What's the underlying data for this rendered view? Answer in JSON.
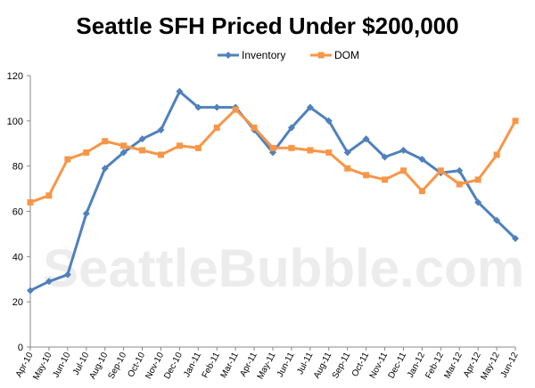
{
  "chart_data": {
    "type": "line",
    "title": "Seattle SFH Priced Under $200,000",
    "watermark": "SeattleBubble.com",
    "categories": [
      "Apr-10",
      "May-10",
      "Jun-10",
      "Jul-10",
      "Aug-10",
      "Sep-10",
      "Oct-10",
      "Nov-10",
      "Dec-10",
      "Jan-11",
      "Feb-11",
      "Mar-11",
      "Apr-11",
      "May-11",
      "Jun-11",
      "Jul-11",
      "Aug-11",
      "Sep-11",
      "Oct-11",
      "Nov-11",
      "Dec-11",
      "Jan-12",
      "Feb-12",
      "Mar-12",
      "Apr-12",
      "May-12",
      "Jun-12"
    ],
    "series": [
      {
        "name": "Inventory",
        "color": "#4f81bd",
        "marker": "diamond",
        "values": [
          25,
          29,
          32,
          59,
          79,
          86,
          92,
          96,
          113,
          106,
          106,
          106,
          96,
          86,
          97,
          106,
          100,
          86,
          92,
          84,
          87,
          83,
          77,
          78,
          64,
          56,
          48
        ]
      },
      {
        "name": "DOM",
        "color": "#f79646",
        "marker": "square",
        "values": [
          64,
          67,
          83,
          86,
          91,
          89,
          87,
          85,
          89,
          88,
          97,
          105,
          97,
          88,
          88,
          87,
          86,
          79,
          76,
          74,
          78,
          69,
          78,
          72,
          74,
          85,
          100
        ]
      }
    ],
    "ylim": [
      0,
      120
    ],
    "yticks": [
      0,
      20,
      40,
      60,
      80,
      100,
      120
    ],
    "xlabel": "",
    "ylabel": "",
    "grid": false,
    "legend_position": "top-center"
  }
}
